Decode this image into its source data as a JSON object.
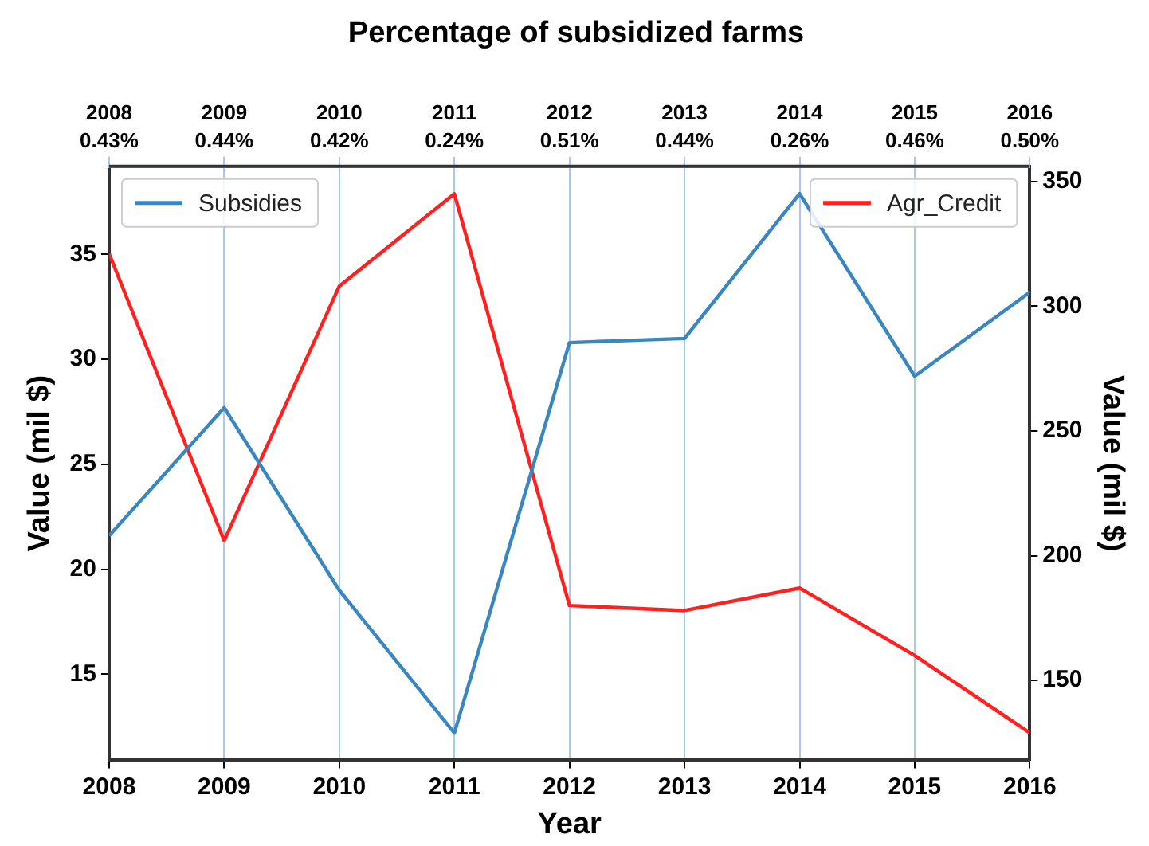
{
  "chart_data": {
    "type": "line",
    "title": "Percentage of subsidized farms",
    "xlabel": "Year",
    "ylabel": "Value (mil $)",
    "y2label": "Value (mil $)",
    "x": [
      2008,
      2009,
      2010,
      2011,
      2012,
      2013,
      2014,
      2015,
      2016
    ],
    "xlim": [
      2008,
      2016
    ],
    "xticks": [
      2008,
      2009,
      2010,
      2011,
      2012,
      2013,
      2014,
      2015,
      2016
    ],
    "x2lim": [
      2008,
      2016
    ],
    "x2ticks": [
      2008,
      2009,
      2010,
      2011,
      2012,
      2013,
      2014,
      2015,
      2016
    ],
    "annotations": [
      "0.43%",
      "0.44%",
      "0.42%",
      "0.24%",
      "0.51%",
      "0.44%",
      "0.26%",
      "0.46%",
      "0.50%"
    ],
    "ylim": [
      10.9,
      39.2
    ],
    "yticks": [
      15,
      20,
      25,
      30,
      35
    ],
    "y2lim": [
      118,
      356
    ],
    "y2ticks": [
      150,
      200,
      250,
      300,
      350
    ],
    "series": [
      {
        "name": "Subsidies",
        "color": "#3a87c0",
        "values": [
          21.6,
          27.7,
          19.0,
          12.2,
          30.8,
          31.0,
          37.9,
          29.2,
          33.2
        ]
      },
      {
        "name": "Agr_Credit",
        "color": "#ff2020",
        "axis": "y2",
        "values": [
          321,
          206,
          308,
          345,
          180,
          178,
          187,
          160,
          129
        ]
      }
    ],
    "grid": "x",
    "legend": "top",
    "marker": "none",
    "line_style": "solid"
  }
}
